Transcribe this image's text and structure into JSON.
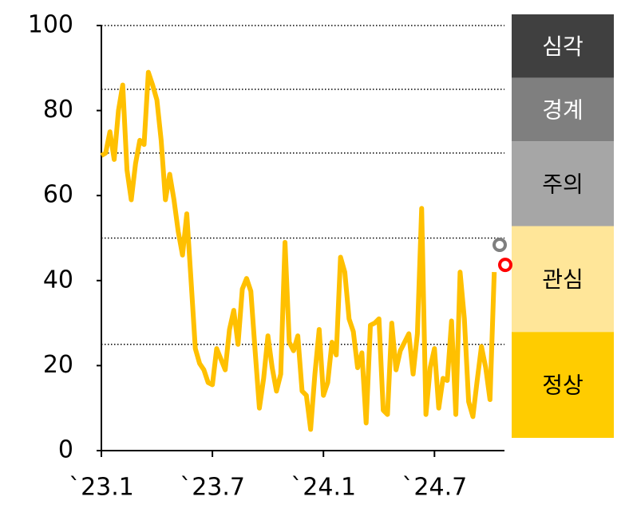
{
  "chart_data": {
    "type": "line",
    "categories": [
      "`23.1",
      null,
      null,
      null,
      null,
      null,
      null,
      null,
      null,
      null,
      null,
      null,
      null,
      null,
      null,
      null,
      null,
      null,
      null,
      null,
      null,
      null,
      null,
      null,
      null,
      null,
      "`23.7",
      null,
      null,
      null,
      null,
      null,
      null,
      null,
      null,
      null,
      null,
      null,
      null,
      null,
      null,
      null,
      null,
      null,
      null,
      null,
      null,
      null,
      null,
      null,
      null,
      null,
      "`24.1",
      null,
      null,
      null,
      null,
      null,
      null,
      null,
      null,
      null,
      null,
      null,
      null,
      null,
      null,
      null,
      null,
      null,
      null,
      null,
      null,
      null,
      null,
      null,
      null,
      null,
      "`24.7",
      null,
      null,
      null,
      null,
      null,
      null,
      null,
      null,
      null,
      null,
      null,
      null,
      null,
      null
    ],
    "series": [
      {
        "color": "#ffc000",
        "values": [
          69.4,
          70,
          75,
          68.5,
          80,
          86,
          66,
          59,
          67.5,
          73,
          72,
          89,
          86,
          82.5,
          73,
          59,
          65,
          59,
          51.5,
          46,
          55.7,
          40,
          24,
          20.5,
          19,
          16,
          15.5,
          24,
          21.5,
          19,
          28.5,
          33,
          25,
          38,
          40.5,
          37.5,
          23.5,
          10,
          17,
          27,
          19.5,
          14,
          18,
          49,
          25.5,
          23.5,
          27,
          14,
          13,
          5,
          18,
          28.5,
          13,
          16,
          25.5,
          22.5,
          45.5,
          42,
          31,
          28,
          19.5,
          23,
          6.5,
          29.5,
          30,
          31,
          9.5,
          8.5,
          30,
          19,
          23.5,
          25.5,
          27.5,
          18,
          27.5,
          57,
          8.5,
          19.5,
          24,
          10,
          17,
          16.5,
          30.5,
          8.5,
          42,
          31,
          11.5,
          8,
          16.5,
          24.5,
          19.5,
          12,
          42
        ]
      }
    ],
    "markers": [
      {
        "color": "#7f7f7f",
        "value": 48.4
      },
      {
        "color": "#ff0000",
        "value": 43.7
      }
    ],
    "bands": [
      {
        "label": "심각",
        "from": 85,
        "to": 100,
        "color": "#404040",
        "text_color": "#ffffff"
      },
      {
        "label": "경계",
        "from": 70,
        "to": 85,
        "color": "#7f7f7f",
        "text_color": "#ffffff"
      },
      {
        "label": "주의",
        "from": 50,
        "to": 70,
        "color": "#a6a6a6",
        "text_color": "#000000"
      },
      {
        "label": "관심",
        "from": 25,
        "to": 50,
        "color": "#ffe699",
        "text_color": "#000000"
      },
      {
        "label": "정상",
        "from": 0,
        "to": 25,
        "color": "#ffcc00",
        "text_color": "#000000"
      }
    ],
    "ylim": [
      0,
      100
    ],
    "yticks": [
      0,
      20,
      40,
      60,
      80,
      100
    ]
  }
}
